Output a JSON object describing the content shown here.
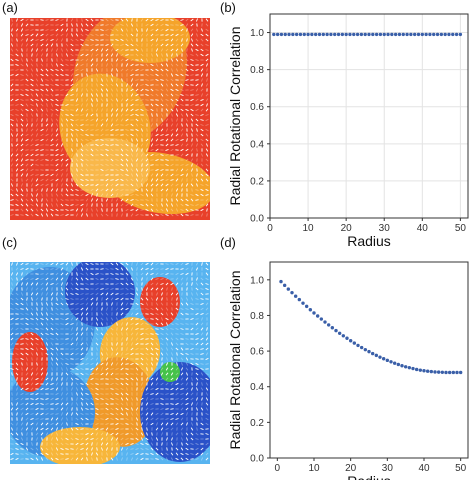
{
  "panels": {
    "a_label": "(a)",
    "b_label": "(b)",
    "c_label": "(c)",
    "d_label": "(d)"
  },
  "colors": {
    "marker": "#3a5fa8",
    "grid": "#e3e3e3",
    "axis": "#333333",
    "field_a": [
      "#e8402a",
      "#f07a2a",
      "#f5a42a",
      "#f9b84a"
    ],
    "field_c": [
      "#2a52c8",
      "#3f8fe0",
      "#58b4f0",
      "#e8402a",
      "#f09a2a",
      "#f7b63a",
      "#46c24a"
    ]
  },
  "chart_data": [
    {
      "panel": "(b)",
      "type": "scatter",
      "xlabel": "Radius",
      "ylabel": "Radial Rotational Correlation",
      "xlim": [
        0,
        52
      ],
      "ylim": [
        0,
        1.1
      ],
      "xticks": [
        0,
        10,
        20,
        30,
        40,
        50
      ],
      "yticks": [
        0.0,
        0.2,
        0.4,
        0.6,
        0.8,
        1.0
      ],
      "grid": true,
      "series": [
        {
          "x": [
            1,
            2,
            3,
            4,
            5,
            6,
            7,
            8,
            9,
            10,
            11,
            12,
            13,
            14,
            15,
            16,
            17,
            18,
            19,
            20,
            21,
            22,
            23,
            24,
            25,
            26,
            27,
            28,
            29,
            30,
            31,
            32,
            33,
            34,
            35,
            36,
            37,
            38,
            39,
            40,
            41,
            42,
            43,
            44,
            45,
            46,
            47,
            48,
            49,
            50
          ],
          "values": [
            0.99,
            0.99,
            0.99,
            0.99,
            0.99,
            0.99,
            0.99,
            0.99,
            0.99,
            0.99,
            0.99,
            0.99,
            0.99,
            0.99,
            0.99,
            0.99,
            0.99,
            0.99,
            0.99,
            0.99,
            0.99,
            0.99,
            0.99,
            0.99,
            0.99,
            0.99,
            0.99,
            0.99,
            0.99,
            0.99,
            0.99,
            0.99,
            0.99,
            0.99,
            0.99,
            0.99,
            0.99,
            0.99,
            0.99,
            0.99,
            0.99,
            0.99,
            0.99,
            0.99,
            0.99,
            0.99,
            0.99,
            0.99,
            0.99,
            0.99
          ]
        }
      ]
    },
    {
      "panel": "(d)",
      "type": "scatter",
      "xlabel": "Radius",
      "ylabel": "Radial Rotational Correlation",
      "xlim": [
        -2,
        52
      ],
      "ylim": [
        0,
        1.1
      ],
      "xticks": [
        0,
        10,
        20,
        30,
        40,
        50
      ],
      "yticks": [
        0.0,
        0.2,
        0.4,
        0.6,
        0.8,
        1.0
      ],
      "grid": false,
      "series": [
        {
          "x": [
            1,
            2,
            3,
            4,
            5,
            6,
            7,
            8,
            9,
            10,
            11,
            12,
            13,
            14,
            15,
            16,
            17,
            18,
            19,
            20,
            21,
            22,
            23,
            24,
            25,
            26,
            27,
            28,
            29,
            30,
            31,
            32,
            33,
            34,
            35,
            36,
            37,
            38,
            39,
            40,
            41,
            42,
            43,
            44,
            45,
            46,
            47,
            48,
            49,
            50
          ],
          "values": [
            0.99,
            0.969,
            0.948,
            0.928,
            0.908,
            0.889,
            0.869,
            0.851,
            0.832,
            0.814,
            0.797,
            0.78,
            0.763,
            0.747,
            0.731,
            0.715,
            0.7,
            0.686,
            0.672,
            0.658,
            0.645,
            0.632,
            0.62,
            0.608,
            0.597,
            0.586,
            0.576,
            0.566,
            0.557,
            0.548,
            0.54,
            0.532,
            0.525,
            0.518,
            0.512,
            0.507,
            0.502,
            0.497,
            0.493,
            0.49,
            0.487,
            0.485,
            0.483,
            0.482,
            0.481,
            0.48,
            0.48,
            0.48,
            0.48,
            0.48
          ]
        }
      ]
    }
  ]
}
